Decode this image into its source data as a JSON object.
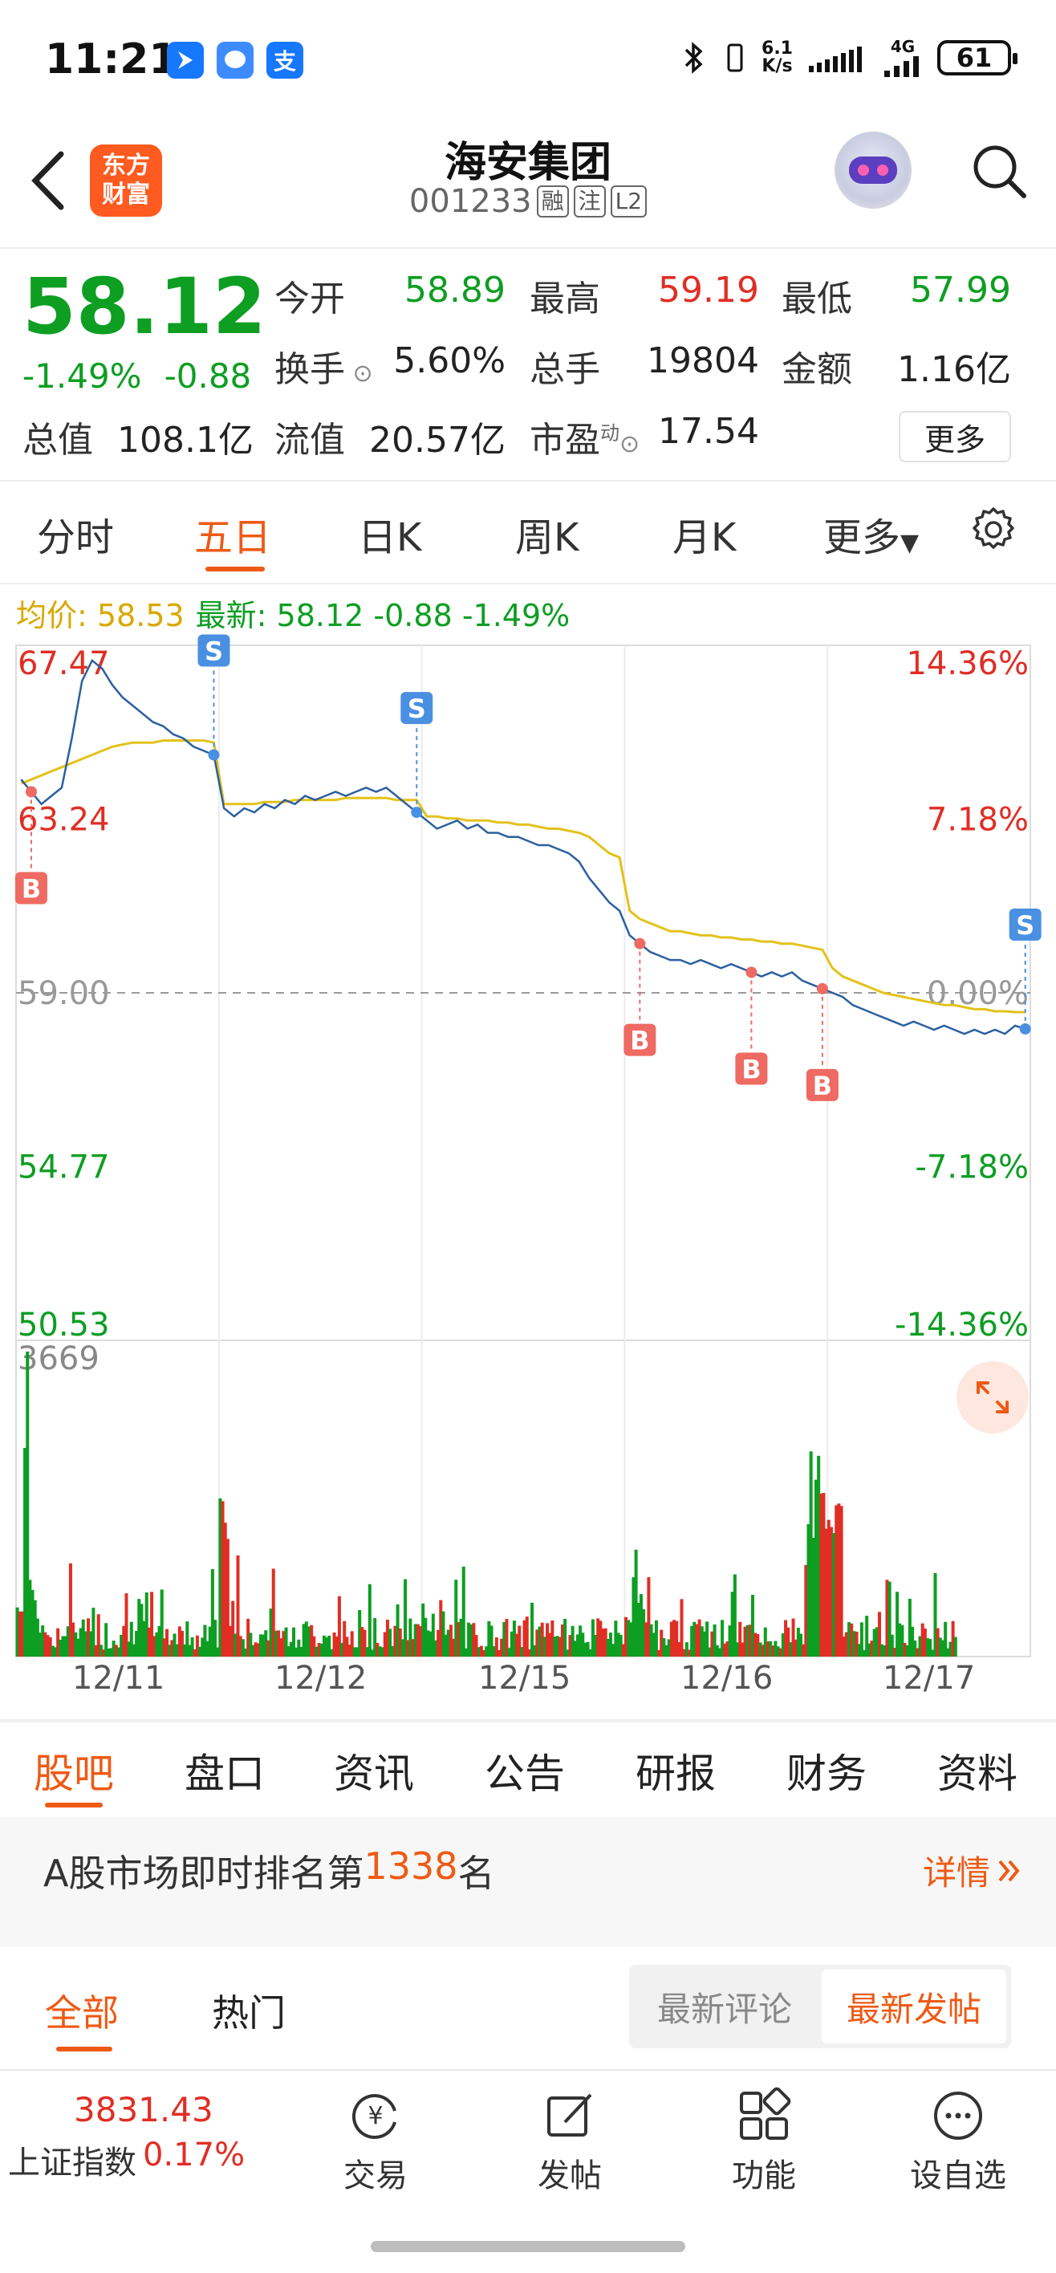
{
  "status": {
    "time": "11:21",
    "net_speed_top": "6.1",
    "net_speed_unit": "K/s",
    "network": "4G",
    "battery": "61",
    "app_icons": [
      "feishu-icon",
      "message-icon",
      "alipay-icon"
    ],
    "alipay_glyph": "支"
  },
  "header": {
    "logo_line1": "东方",
    "logo_line2": "财富",
    "name": "海安集团",
    "code": "001233",
    "tags": [
      "融",
      "注",
      "L2"
    ]
  },
  "quote": {
    "price": "58.12",
    "change_pct": "-1.49%",
    "change_amt": "-0.88",
    "open_label": "今开",
    "open_value": "58.89",
    "high_label": "最高",
    "high_value": "59.19",
    "low_label": "最低",
    "low_value": "57.99",
    "turnover_label": "换手",
    "turnover_value": "5.60%",
    "volume_label": "总手",
    "volume_value": "19804",
    "amount_label": "金额",
    "amount_value": "1.16亿",
    "mktcap_label": "总值",
    "mktcap_value": "108.1亿",
    "float_label": "流值",
    "float_value": "20.57亿",
    "pe_label": "市盈",
    "pe_superscript": "动",
    "pe_value": "17.54",
    "more_label": "更多"
  },
  "chart_tabs": [
    "分时",
    "五日",
    "日K",
    "周K",
    "月K",
    "更多"
  ],
  "chart_tab_active": 1,
  "avg_info": {
    "avg_label": "均价: 58.53",
    "latest_label": "最新: 58.12 -0.88 -1.49%"
  },
  "chart_data": {
    "type": "line",
    "days": [
      "12/11",
      "12/12",
      "12/15",
      "12/16",
      "12/17"
    ],
    "price_axis": [
      "67.47",
      "63.24",
      "59.00",
      "54.77",
      "50.53"
    ],
    "pct_axis": [
      "14.36%",
      "7.18%",
      "0.00%",
      "-7.18%",
      "-14.36%"
    ],
    "ylim": [
      50.53,
      67.47
    ],
    "reference_price": 59.0,
    "volume_max_label": "3669",
    "price_series": [
      64.2,
      63.9,
      63.6,
      63.8,
      64.0,
      65.2,
      66.6,
      67.1,
      66.9,
      66.5,
      66.2,
      66.0,
      65.8,
      65.6,
      65.5,
      65.3,
      65.2,
      65.0,
      64.9,
      64.8,
      63.5,
      63.3,
      63.5,
      63.4,
      63.6,
      63.5,
      63.7,
      63.6,
      63.8,
      63.7,
      63.8,
      63.9,
      63.8,
      63.9,
      64.0,
      63.9,
      64.0,
      63.8,
      63.6,
      63.4,
      63.2,
      63.0,
      63.1,
      63.2,
      63.0,
      63.1,
      62.9,
      62.9,
      62.8,
      62.8,
      62.7,
      62.6,
      62.6,
      62.5,
      62.4,
      62.2,
      61.8,
      61.5,
      61.2,
      61.0,
      60.4,
      60.2,
      60.0,
      59.9,
      59.8,
      59.8,
      59.7,
      59.8,
      59.7,
      59.6,
      59.7,
      59.6,
      59.5,
      59.4,
      59.5,
      59.4,
      59.5,
      59.3,
      59.2,
      59.1,
      59.0,
      58.9,
      58.7,
      58.6,
      58.5,
      58.4,
      58.3,
      58.2,
      58.3,
      58.2,
      58.1,
      58.2,
      58.1,
      58.0,
      58.1,
      58.0,
      58.1,
      58.0,
      58.2,
      58.12
    ],
    "avg_series": [
      64.1,
      64.2,
      64.3,
      64.4,
      64.5,
      64.6,
      64.7,
      64.8,
      64.9,
      65.0,
      65.05,
      65.1,
      65.1,
      65.1,
      65.15,
      65.15,
      65.15,
      65.15,
      65.15,
      65.1,
      63.6,
      63.6,
      63.6,
      63.6,
      63.65,
      63.65,
      63.65,
      63.7,
      63.7,
      63.7,
      63.7,
      63.7,
      63.75,
      63.75,
      63.75,
      63.75,
      63.75,
      63.7,
      63.7,
      63.7,
      63.3,
      63.3,
      63.25,
      63.25,
      63.2,
      63.2,
      63.2,
      63.15,
      63.15,
      63.1,
      63.1,
      63.05,
      63.0,
      63.0,
      62.95,
      62.9,
      62.8,
      62.6,
      62.4,
      62.3,
      61.0,
      60.8,
      60.7,
      60.6,
      60.5,
      60.5,
      60.45,
      60.4,
      60.4,
      60.35,
      60.35,
      60.3,
      60.3,
      60.25,
      60.25,
      60.2,
      60.2,
      60.15,
      60.1,
      60.05,
      59.6,
      59.4,
      59.3,
      59.2,
      59.1,
      59.0,
      58.95,
      58.9,
      58.85,
      58.8,
      58.75,
      58.7,
      58.7,
      58.65,
      58.6,
      58.6,
      58.55,
      58.55,
      58.53,
      58.53
    ],
    "signals": [
      {
        "label": "B",
        "type": "buy",
        "index": 1
      },
      {
        "label": "S",
        "type": "sell",
        "index": 19
      },
      {
        "label": "S",
        "type": "sell",
        "index": 39
      },
      {
        "label": "B",
        "type": "buy",
        "index": 61
      },
      {
        "label": "B",
        "type": "buy",
        "index": 72
      },
      {
        "label": "B",
        "type": "buy",
        "index": 79
      },
      {
        "label": "S",
        "type": "sell",
        "index": 99
      }
    ]
  },
  "news_tabs": [
    "股吧",
    "盘口",
    "资讯",
    "公告",
    "研报",
    "财务",
    "资料"
  ],
  "news_tab_active": 0,
  "rank": {
    "prefix": "A股市场即时排名第",
    "number": "1338",
    "suffix": "名",
    "detail": "详情"
  },
  "filters": {
    "tabs": [
      "全部",
      "热门"
    ],
    "sort_options": [
      "最新评论",
      "最新发帖"
    ],
    "sort_active": 1
  },
  "bottom_bar": {
    "index_value": "3831.43",
    "index_name": "上证指数",
    "index_pct": "0.17%",
    "items": [
      "交易",
      "发帖",
      "功能",
      "设自选"
    ],
    "trade_glyph": "¥"
  },
  "colors": {
    "accent": "#ee5a15",
    "down": "#0d9e22",
    "up": "#e02e24",
    "price_line": "#2c5f9e",
    "avg_line": "#e3c21a"
  }
}
